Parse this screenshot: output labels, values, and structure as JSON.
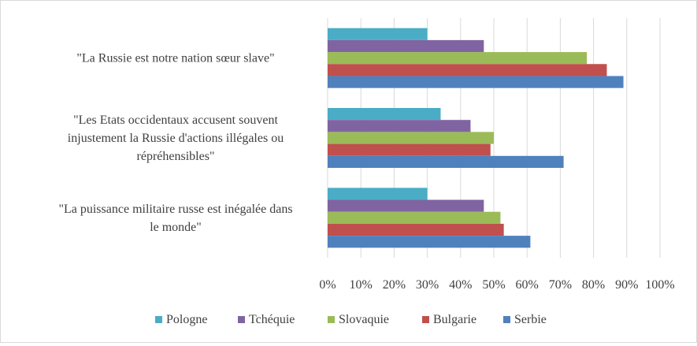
{
  "chart_data": {
    "type": "bar",
    "orientation": "horizontal",
    "categories": [
      [
        "\"La Russie est notre nation sœur slave\""
      ],
      [
        "\"Les Etats occidentaux accusent souvent",
        "injustement la Russie d'actions illégales ou",
        "répréhensibles\""
      ],
      [
        "\"La puissance militaire russe est inégalée dans",
        "le monde\""
      ]
    ],
    "series": [
      {
        "name": "Pologne",
        "color": "#4BACC6",
        "values": [
          30,
          34,
          30
        ]
      },
      {
        "name": "Tchéquie",
        "color": "#8064A2",
        "values": [
          47,
          43,
          47
        ]
      },
      {
        "name": "Slovaquie",
        "color": "#9BBB59",
        "values": [
          78,
          50,
          52
        ]
      },
      {
        "name": "Bulgarie",
        "color": "#C0504D",
        "values": [
          84,
          49,
          53
        ]
      },
      {
        "name": "Serbie",
        "color": "#4F81BD",
        "values": [
          89,
          71,
          61
        ]
      }
    ],
    "xlim": [
      0,
      100
    ],
    "xticks": [
      "0%",
      "10%",
      "20%",
      "30%",
      "40%",
      "50%",
      "60%",
      "70%",
      "80%",
      "90%",
      "100%"
    ],
    "grid": true,
    "legend_position": "bottom"
  }
}
